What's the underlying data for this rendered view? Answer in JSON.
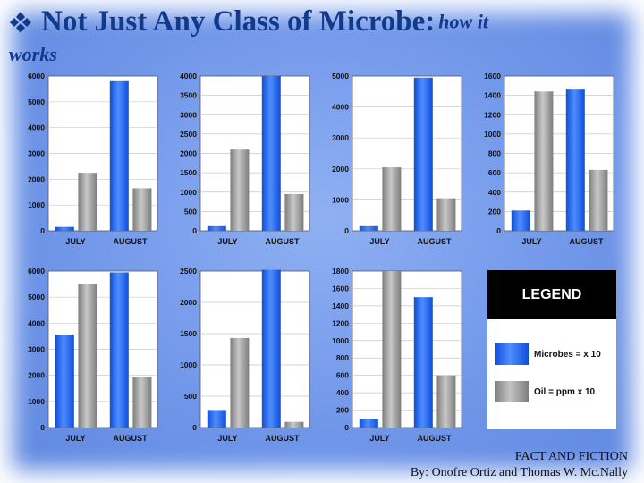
{
  "slide": {
    "title_main": "Not Just Any Class of Microbe:",
    "title_italic_1": "how it",
    "title_italic_2": "works",
    "footer_line1": "FACT AND FICTION",
    "footer_line2": "By: Onofre Ortiz and Thomas W. Mc.Nally",
    "colors": {
      "title": "#123a8a",
      "microbes": "#1f5fe6",
      "oil": "#9a9a9a",
      "background": "#7197ea"
    }
  },
  "legend": {
    "heading": "LEGEND",
    "items": [
      {
        "label": "Microbes = x 10",
        "color": "#1f5fe6"
      },
      {
        "label": "Oil = ppm x 10",
        "color": "#9a9a9a"
      }
    ]
  },
  "chart_data": [
    {
      "type": "bar",
      "categories": [
        "JULY",
        "AUGUST"
      ],
      "ylim": [
        0,
        6000
      ],
      "yticks": [
        "0",
        "1000",
        "2000",
        "3000",
        "4000",
        "5000",
        "6000"
      ],
      "series": [
        {
          "values": [
            150,
            5800
          ]
        },
        {
          "values": [
            2250,
            1650
          ]
        }
      ]
    },
    {
      "type": "bar",
      "categories": [
        "JULY",
        "AUGUST"
      ],
      "ylim": [
        0,
        4000
      ],
      "yticks": [
        "0",
        "500",
        "1000",
        "1500",
        "2000",
        "2500",
        "3000",
        "3500",
        "4000"
      ],
      "series": [
        {
          "values": [
            120,
            4000
          ]
        },
        {
          "values": [
            2100,
            950
          ]
        }
      ]
    },
    {
      "type": "bar",
      "categories": [
        "JULY",
        "AUGUST"
      ],
      "ylim": [
        0,
        5000
      ],
      "yticks": [
        "0",
        "1000",
        "2000",
        "3000",
        "4000",
        "5000"
      ],
      "series": [
        {
          "values": [
            150,
            4950
          ]
        },
        {
          "values": [
            2050,
            1050
          ]
        }
      ]
    },
    {
      "type": "bar",
      "categories": [
        "JULY",
        "AUGUST"
      ],
      "ylim": [
        0,
        1600
      ],
      "yticks": [
        "0",
        "200",
        "400",
        "600",
        "800",
        "1000",
        "1200",
        "1400",
        "1600"
      ],
      "series": [
        {
          "values": [
            210,
            1460
          ]
        },
        {
          "values": [
            1440,
            630
          ]
        }
      ]
    },
    {
      "type": "bar",
      "categories": [
        "JULY",
        "AUGUST"
      ],
      "ylim": [
        0,
        6000
      ],
      "yticks": [
        "0",
        "1000",
        "2000",
        "3000",
        "4000",
        "5000",
        "6000"
      ],
      "series": [
        {
          "values": [
            3550,
            5950
          ]
        },
        {
          "values": [
            5500,
            1950
          ]
        }
      ]
    },
    {
      "type": "bar",
      "categories": [
        "JULY",
        "AUGUST"
      ],
      "ylim": [
        0,
        2500
      ],
      "yticks": [
        "0",
        "500",
        "1000",
        "1500",
        "2000",
        "2500"
      ],
      "series": [
        {
          "values": [
            280,
            2520
          ]
        },
        {
          "values": [
            1430,
            90
          ]
        }
      ]
    },
    {
      "type": "bar",
      "categories": [
        "JULY",
        "AUGUST"
      ],
      "ylim": [
        0,
        1800
      ],
      "yticks": [
        "0",
        "200",
        "400",
        "600",
        "800",
        "1000",
        "1200",
        "1400",
        "1600",
        "1800"
      ],
      "series": [
        {
          "values": [
            100,
            1500
          ]
        },
        {
          "values": [
            1800,
            600
          ]
        }
      ]
    }
  ]
}
